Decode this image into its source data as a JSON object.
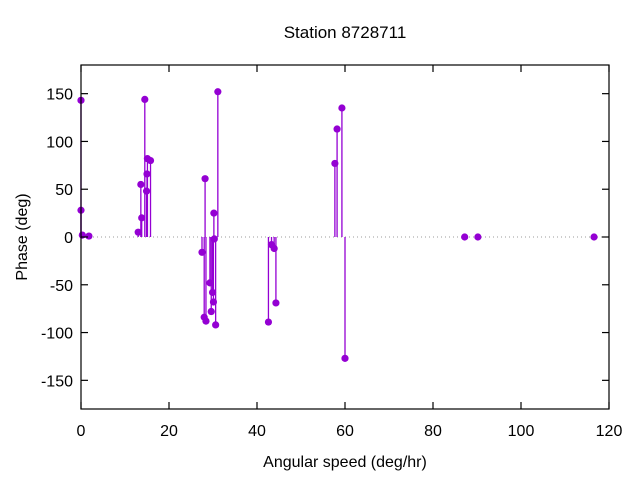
{
  "chart_data": {
    "type": "scatter",
    "style": "stem (impulses from y=0 with filled circle markers)",
    "title": "Station 8728711",
    "xlabel": "Angular speed (deg/hr)",
    "ylabel": "Phase (deg)",
    "xlim": [
      0,
      120
    ],
    "ylim": [
      -180,
      180
    ],
    "x_ticks": [
      0,
      20,
      40,
      60,
      80,
      100,
      120
    ],
    "y_ticks": [
      -150,
      -100,
      -50,
      0,
      50,
      100,
      150
    ],
    "grid": false,
    "legend": "none",
    "zero_line": {
      "y": 0,
      "style": "dotted",
      "color": "#9b9b9b"
    },
    "series_color": "#9400D3",
    "border_color": "#000000",
    "background": "#ffffff",
    "points": [
      {
        "x": 0.0,
        "y": 143
      },
      {
        "x": 0.0,
        "y": 28
      },
      {
        "x": 0.3,
        "y": 2
      },
      {
        "x": 1.8,
        "y": 1
      },
      {
        "x": 13.0,
        "y": 5
      },
      {
        "x": 13.6,
        "y": 55
      },
      {
        "x": 13.8,
        "y": 20
      },
      {
        "x": 14.5,
        "y": 144
      },
      {
        "x": 14.9,
        "y": 48
      },
      {
        "x": 15.0,
        "y": 66
      },
      {
        "x": 15.1,
        "y": 82
      },
      {
        "x": 15.8,
        "y": 80
      },
      {
        "x": 27.5,
        "y": -16
      },
      {
        "x": 28.0,
        "y": -84
      },
      {
        "x": 28.2,
        "y": 61
      },
      {
        "x": 28.4,
        "y": -88
      },
      {
        "x": 29.3,
        "y": -48
      },
      {
        "x": 29.6,
        "y": -78
      },
      {
        "x": 29.9,
        "y": -58
      },
      {
        "x": 30.1,
        "y": -68
      },
      {
        "x": 30.2,
        "y": 25
      },
      {
        "x": 30.3,
        "y": -2
      },
      {
        "x": 30.6,
        "y": -92
      },
      {
        "x": 31.1,
        "y": 152
      },
      {
        "x": 42.6,
        "y": -89
      },
      {
        "x": 43.3,
        "y": -8
      },
      {
        "x": 43.9,
        "y": -12
      },
      {
        "x": 44.3,
        "y": -69
      },
      {
        "x": 57.7,
        "y": 77
      },
      {
        "x": 58.2,
        "y": 113
      },
      {
        "x": 59.3,
        "y": 135
      },
      {
        "x": 60.0,
        "y": -127
      },
      {
        "x": 87.2,
        "y": 0
      },
      {
        "x": 90.2,
        "y": 0
      },
      {
        "x": 116.6,
        "y": 0
      }
    ]
  }
}
